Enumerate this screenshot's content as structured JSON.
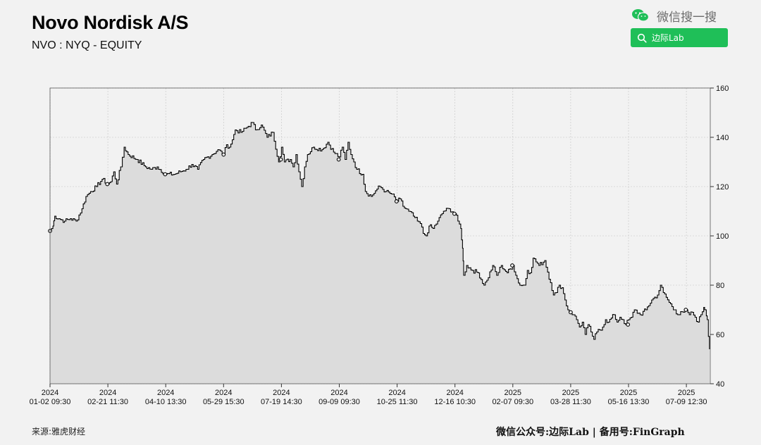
{
  "header": {
    "title": "Novo Nordisk A/S",
    "subtitle": "NVO : NYQ - EQUITY"
  },
  "wechat": {
    "search_label": "微信搜一搜",
    "search_box_text": "边际Lab",
    "icon": "wechat-icon",
    "search_icon": "search-icon",
    "accent_color": "#1fbf58"
  },
  "footer": {
    "source": "来源:雅虎财经",
    "credit": "微信公众号:边际Lab | 备用号:FinGraph"
  },
  "chart_data": {
    "type": "area",
    "title": "",
    "xlabel": "",
    "ylabel": "",
    "ylim": [
      40,
      160
    ],
    "yticks": [
      40,
      60,
      80,
      100,
      120,
      140,
      160
    ],
    "grid": true,
    "line_color": "#000000",
    "fill_color": "#dcdcdc",
    "xticks": [
      {
        "year": "2024",
        "label": "01-02 09:30"
      },
      {
        "year": "2024",
        "label": "02-21 11:30"
      },
      {
        "year": "2024",
        "label": "04-10 13:30"
      },
      {
        "year": "2024",
        "label": "05-29 15:30"
      },
      {
        "year": "2024",
        "label": "07-19 14:30"
      },
      {
        "year": "2024",
        "label": "09-09 09:30"
      },
      {
        "year": "2024",
        "label": "10-25 11:30"
      },
      {
        "year": "2024",
        "label": "12-16 10:30"
      },
      {
        "year": "2025",
        "label": "02-07 09:30"
      },
      {
        "year": "2025",
        "label": "03-28 11:30"
      },
      {
        "year": "2025",
        "label": "05-16 13:30"
      },
      {
        "year": "2025",
        "label": "07-09 12:30"
      }
    ],
    "series": [
      {
        "values": [
          [
            0.0,
            102
          ],
          [
            0.05,
            104
          ],
          [
            0.08,
            108
          ],
          [
            0.15,
            107
          ],
          [
            0.25,
            106
          ],
          [
            0.35,
            107
          ],
          [
            0.45,
            106
          ],
          [
            0.55,
            111
          ],
          [
            0.62,
            116
          ],
          [
            0.7,
            118
          ],
          [
            0.8,
            120
          ],
          [
            0.9,
            123
          ],
          [
            1.0,
            121
          ],
          [
            1.05,
            122
          ],
          [
            1.1,
            126
          ],
          [
            1.15,
            121
          ],
          [
            1.22,
            128
          ],
          [
            1.28,
            136
          ],
          [
            1.35,
            133
          ],
          [
            1.5,
            131
          ],
          [
            1.65,
            128
          ],
          [
            1.75,
            127
          ],
          [
            1.85,
            128
          ],
          [
            2.0,
            125
          ],
          [
            2.15,
            125
          ],
          [
            2.25,
            126
          ],
          [
            2.35,
            127
          ],
          [
            2.45,
            129
          ],
          [
            2.55,
            127
          ],
          [
            2.65,
            131
          ],
          [
            2.8,
            133
          ],
          [
            2.9,
            135
          ],
          [
            3.0,
            133
          ],
          [
            3.05,
            137
          ],
          [
            3.1,
            136
          ],
          [
            3.15,
            139
          ],
          [
            3.2,
            143
          ],
          [
            3.3,
            142
          ],
          [
            3.4,
            144
          ],
          [
            3.5,
            146
          ],
          [
            3.55,
            143
          ],
          [
            3.65,
            145
          ],
          [
            3.75,
            140
          ],
          [
            3.85,
            142
          ],
          [
            3.95,
            130
          ],
          [
            4.0,
            136
          ],
          [
            4.05,
            130
          ],
          [
            4.15,
            131
          ],
          [
            4.2,
            128
          ],
          [
            4.25,
            133
          ],
          [
            4.3,
            126
          ],
          [
            4.35,
            120
          ],
          [
            4.4,
            128
          ],
          [
            4.45,
            133
          ],
          [
            4.55,
            136
          ],
          [
            4.7,
            135
          ],
          [
            4.8,
            138
          ],
          [
            4.9,
            134
          ],
          [
            5.0,
            132
          ],
          [
            5.05,
            136
          ],
          [
            5.1,
            131
          ],
          [
            5.15,
            138
          ],
          [
            5.2,
            133
          ],
          [
            5.25,
            130
          ],
          [
            5.3,
            127
          ],
          [
            5.4,
            125
          ],
          [
            5.45,
            118
          ],
          [
            5.55,
            116
          ],
          [
            5.65,
            119
          ],
          [
            5.7,
            120
          ],
          [
            5.8,
            118
          ],
          [
            5.9,
            117
          ],
          [
            6.0,
            114
          ],
          [
            6.05,
            115
          ],
          [
            6.1,
            112
          ],
          [
            6.2,
            110
          ],
          [
            6.28,
            108
          ],
          [
            6.35,
            106
          ],
          [
            6.4,
            105
          ],
          [
            6.45,
            101
          ],
          [
            6.5,
            100
          ],
          [
            6.55,
            104
          ],
          [
            6.62,
            103
          ],
          [
            6.7,
            106
          ],
          [
            6.8,
            110
          ],
          [
            6.9,
            111
          ],
          [
            7.0,
            109
          ],
          [
            7.05,
            106
          ],
          [
            7.1,
            103
          ],
          [
            7.13,
            95
          ],
          [
            7.15,
            84
          ],
          [
            7.2,
            88
          ],
          [
            7.3,
            86
          ],
          [
            7.4,
            85
          ],
          [
            7.5,
            80
          ],
          [
            7.55,
            82
          ],
          [
            7.65,
            88
          ],
          [
            7.72,
            84
          ],
          [
            7.8,
            88
          ],
          [
            7.9,
            85
          ],
          [
            8.0,
            88
          ],
          [
            8.05,
            84
          ],
          [
            8.12,
            80
          ],
          [
            8.2,
            80
          ],
          [
            8.25,
            86
          ],
          [
            8.3,
            85
          ],
          [
            8.35,
            91
          ],
          [
            8.45,
            88
          ],
          [
            8.55,
            90
          ],
          [
            8.65,
            81
          ],
          [
            8.7,
            76
          ],
          [
            8.75,
            77
          ],
          [
            8.8,
            80
          ],
          [
            8.85,
            79
          ],
          [
            8.9,
            74
          ],
          [
            8.95,
            70
          ],
          [
            9.0,
            69
          ],
          [
            9.05,
            68
          ],
          [
            9.1,
            66
          ],
          [
            9.15,
            63
          ],
          [
            9.2,
            65
          ],
          [
            9.25,
            60
          ],
          [
            9.3,
            64
          ],
          [
            9.35,
            61
          ],
          [
            9.4,
            58
          ],
          [
            9.45,
            61
          ],
          [
            9.55,
            63
          ],
          [
            9.6,
            66
          ],
          [
            9.65,
            65
          ],
          [
            9.75,
            68
          ],
          [
            9.8,
            65
          ],
          [
            9.85,
            67
          ],
          [
            9.9,
            66
          ],
          [
            9.95,
            64
          ],
          [
            10.0,
            66
          ],
          [
            10.05,
            67
          ],
          [
            10.1,
            70
          ],
          [
            10.2,
            68
          ],
          [
            10.3,
            70
          ],
          [
            10.4,
            74
          ],
          [
            10.5,
            76
          ],
          [
            10.55,
            80
          ],
          [
            10.6,
            77
          ],
          [
            10.7,
            73
          ],
          [
            10.8,
            70
          ],
          [
            10.85,
            68
          ],
          [
            10.95,
            69
          ],
          [
            11.0,
            70
          ],
          [
            11.05,
            68
          ],
          [
            11.1,
            69
          ],
          [
            11.15,
            67
          ],
          [
            11.2,
            65
          ],
          [
            11.25,
            68
          ],
          [
            11.3,
            71
          ],
          [
            11.33,
            70
          ],
          [
            11.36,
            66
          ],
          [
            11.4,
            54
          ]
        ]
      }
    ],
    "markers": [
      [
        0.0,
        102
      ],
      [
        0.99,
        121
      ],
      [
        1.99,
        125
      ],
      [
        3.0,
        133
      ],
      [
        3.99,
        131
      ],
      [
        4.99,
        131
      ],
      [
        5.99,
        114
      ],
      [
        6.99,
        109
      ],
      [
        7.99,
        88
      ],
      [
        9.0,
        69
      ],
      [
        9.99,
        64
      ],
      [
        10.99,
        70
      ]
    ]
  }
}
